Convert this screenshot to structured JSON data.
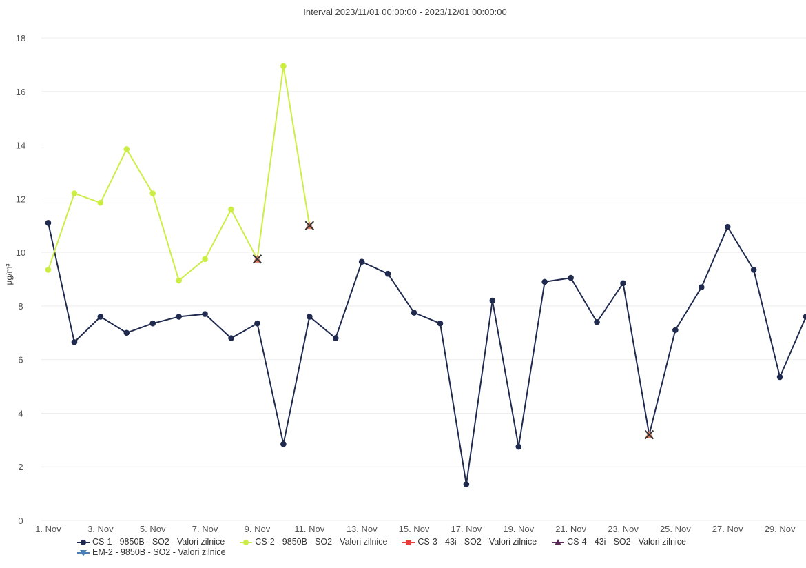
{
  "chart_data": {
    "type": "line",
    "title": "Interval 2023/11/01 00:00:00 - 2023/12/01 00:00:00",
    "xlabel": "",
    "ylabel": "µg/m³",
    "ylim": [
      0,
      18
    ],
    "yticks": [
      0,
      2,
      4,
      6,
      8,
      10,
      12,
      14,
      16,
      18
    ],
    "xlim": [
      1,
      30
    ],
    "x_tick_labels": [
      {
        "day": 1,
        "label": "1. Nov"
      },
      {
        "day": 3,
        "label": "3. Nov"
      },
      {
        "day": 5,
        "label": "5. Nov"
      },
      {
        "day": 7,
        "label": "7. Nov"
      },
      {
        "day": 9,
        "label": "9. Nov"
      },
      {
        "day": 11,
        "label": "11. Nov"
      },
      {
        "day": 13,
        "label": "13. Nov"
      },
      {
        "day": 15,
        "label": "15. Nov"
      },
      {
        "day": 17,
        "label": "17. Nov"
      },
      {
        "day": 19,
        "label": "19. Nov"
      },
      {
        "day": 21,
        "label": "21. Nov"
      },
      {
        "day": 23,
        "label": "23. Nov"
      },
      {
        "day": 25,
        "label": "25. Nov"
      },
      {
        "day": 27,
        "label": "27. Nov"
      },
      {
        "day": 29,
        "label": "29. Nov"
      }
    ],
    "grid": true,
    "legend_position": "bottom",
    "series": [
      {
        "name": "CS-1 - 9850B - SO2 - Valori zilnice",
        "color": "#1f2a4e",
        "marker": "circle",
        "x": [
          1,
          2,
          3,
          4,
          5,
          6,
          7,
          8,
          9,
          10,
          11,
          12,
          13,
          14,
          15,
          16,
          17,
          18,
          19,
          20,
          21,
          22,
          23,
          24,
          25,
          26,
          27,
          28,
          29,
          30
        ],
        "y": [
          11.1,
          6.65,
          7.6,
          7.0,
          7.35,
          7.6,
          7.7,
          6.8,
          7.35,
          2.85,
          7.6,
          6.8,
          9.65,
          9.2,
          7.75,
          7.35,
          1.35,
          8.2,
          2.75,
          8.9,
          9.05,
          7.4,
          8.85,
          3.2,
          7.1,
          8.7,
          10.95,
          9.35,
          5.35,
          7.6
        ],
        "flagged_x": [
          24
        ]
      },
      {
        "name": "CS-2 - 9850B - SO2 - Valori zilnice",
        "color": "#ccee44",
        "marker": "circle",
        "x": [
          1,
          2,
          3,
          4,
          5,
          6,
          7,
          8,
          9,
          10,
          11
        ],
        "y": [
          9.35,
          12.2,
          11.85,
          13.85,
          12.2,
          8.95,
          9.75,
          11.6,
          9.75,
          16.95,
          11.0
        ],
        "flagged_x": [
          9,
          11
        ]
      },
      {
        "name": "CS-3 - 43i - SO2 - Valori zilnice",
        "color": "#e83c3c",
        "marker": "square",
        "x": [],
        "y": []
      },
      {
        "name": "CS-4 - 43i - SO2 - Valori zilnice",
        "color": "#5a2a55",
        "marker": "triangle",
        "x": [],
        "y": []
      },
      {
        "name": "EM-2 - 9850B - SO2 - Valori zilnice",
        "color": "#4a7fb5",
        "marker": "triangle-down",
        "x": [],
        "y": []
      }
    ]
  }
}
